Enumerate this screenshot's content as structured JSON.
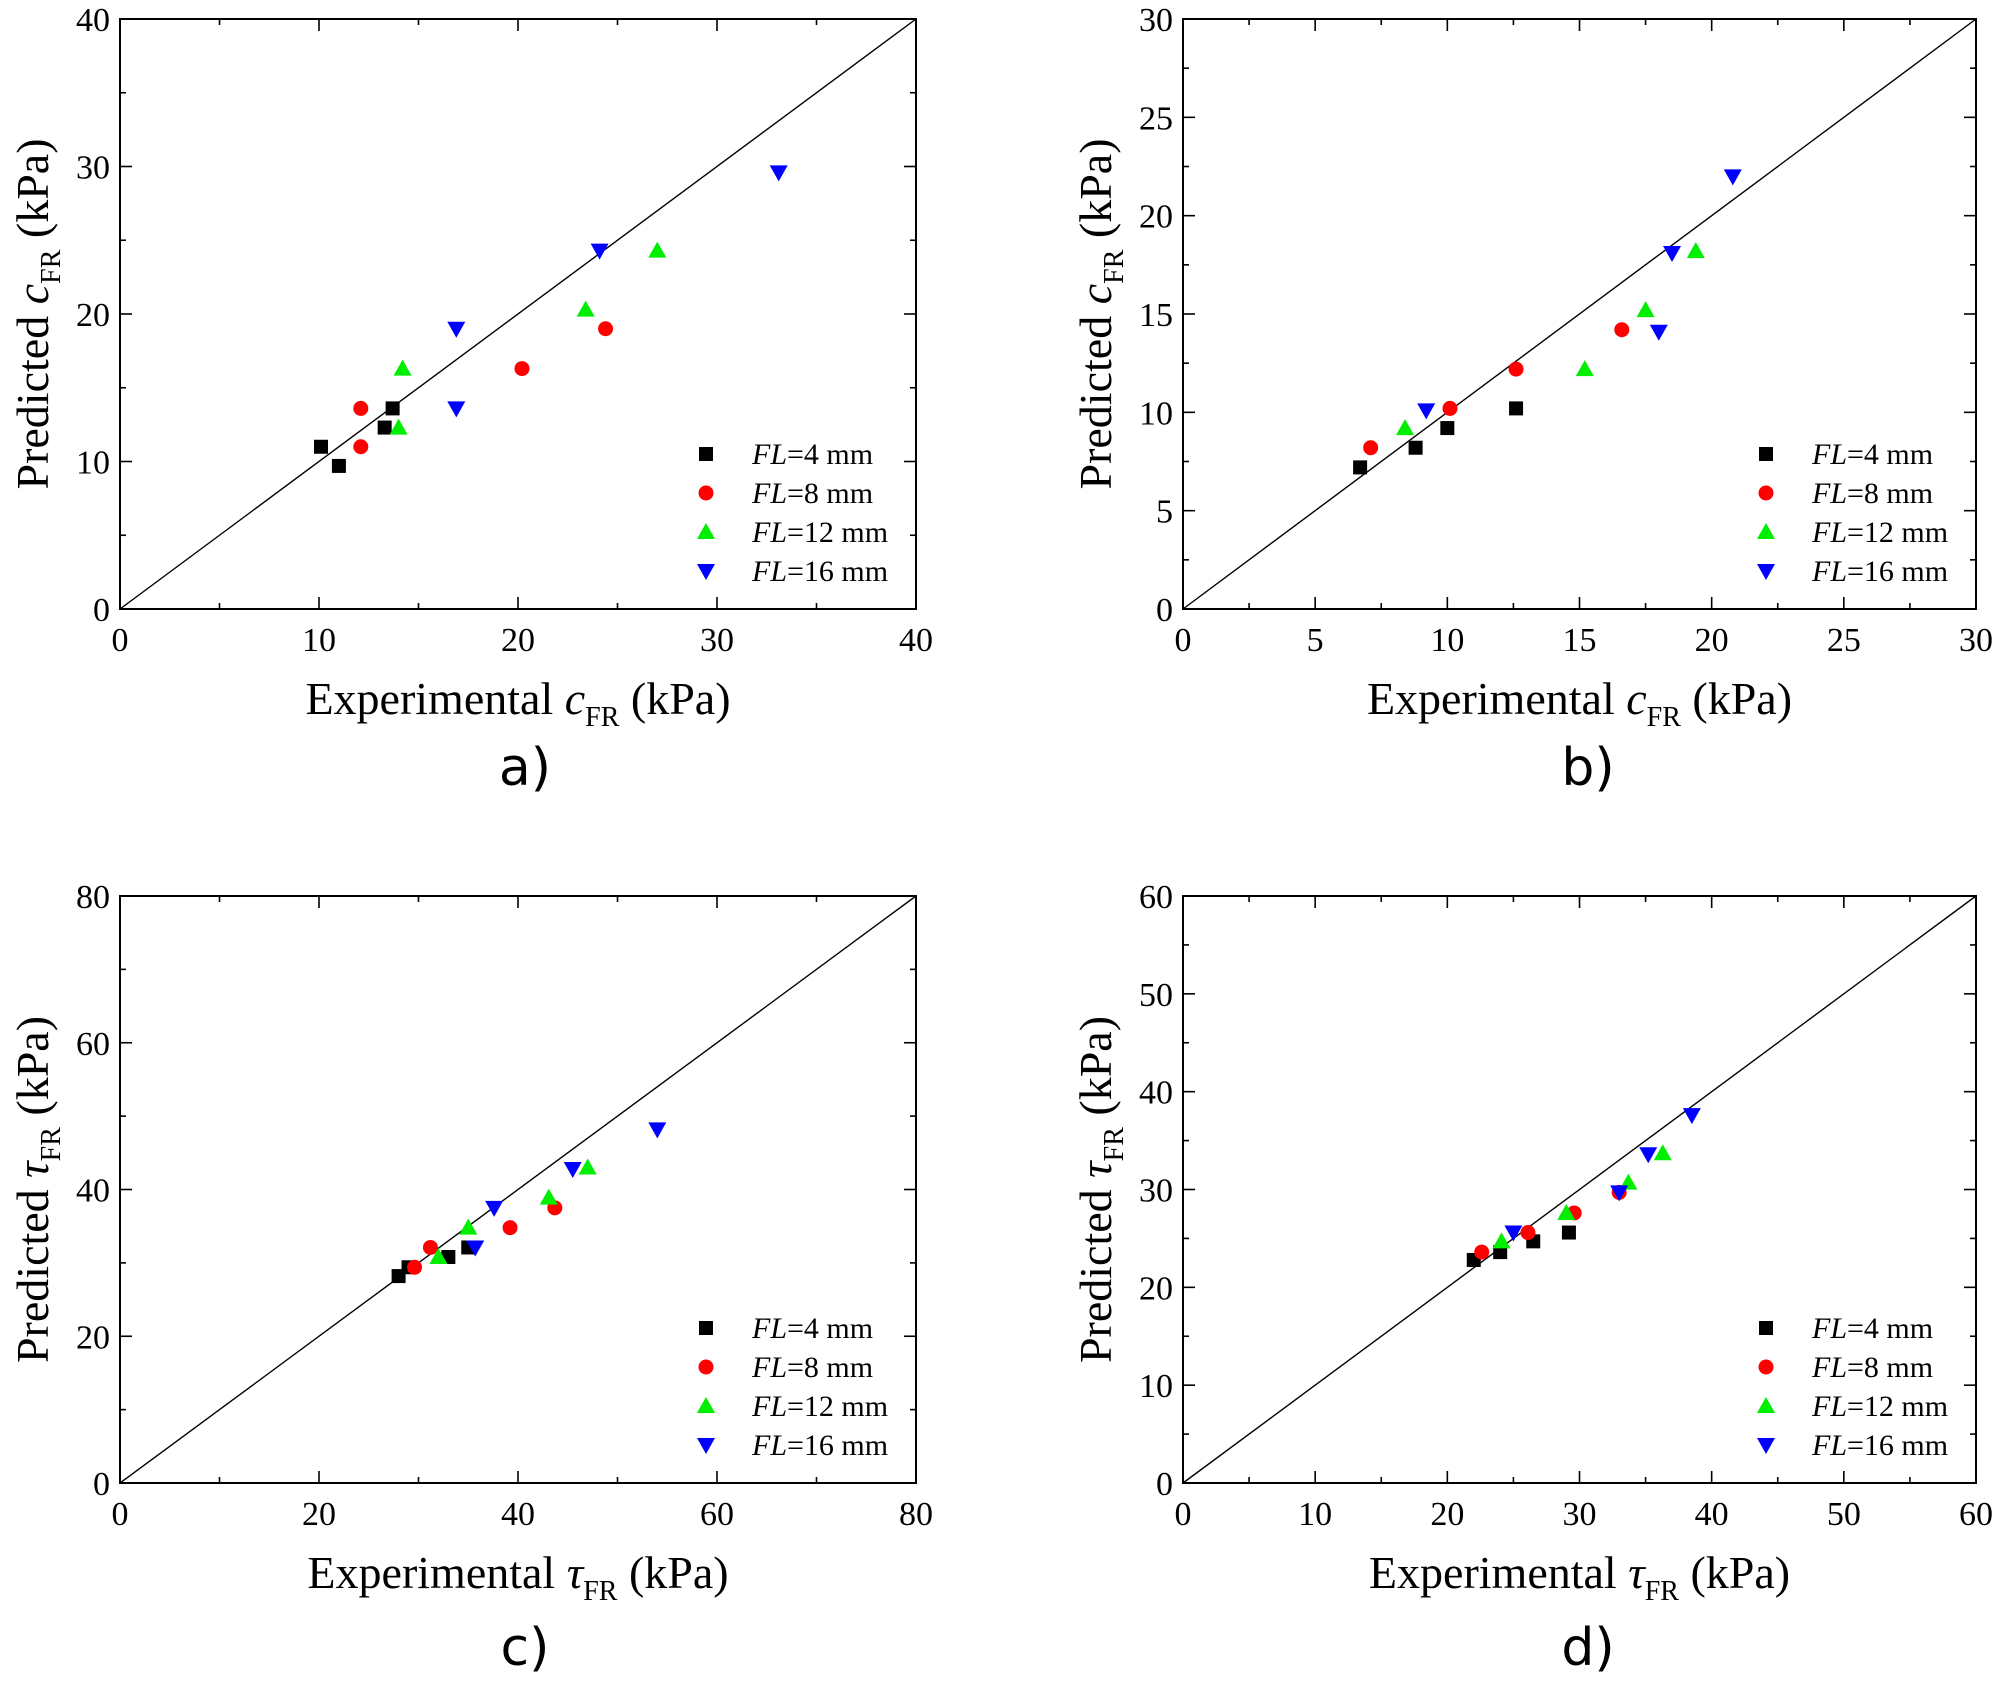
{
  "colors": {
    "FL=4 mm": "#000000",
    "FL=8 mm": "#ff0000",
    "FL=12 mm": "#00ee00",
    "FL=16 mm": "#0000ff"
  },
  "chart_data": [
    {
      "panel_label": "a)",
      "type": "scatter",
      "xlabel": {
        "prefix": "Experimental ",
        "symbol": "c",
        "sub": "FR",
        "suffix": " (kPa)"
      },
      "ylabel": {
        "prefix": "Predicted ",
        "symbol": "c",
        "sub": "FR",
        "suffix": " (kPa)"
      },
      "xlim": [
        0,
        40
      ],
      "ylim": [
        0,
        40
      ],
      "xticks": [
        0,
        10,
        20,
        30,
        40
      ],
      "yticks": [
        0,
        10,
        20,
        30,
        40
      ],
      "legend_position": "bottom-right",
      "reference_line": "y=x",
      "series": [
        {
          "name_italic": "FL",
          "name_rest": "=4 mm",
          "marker": "square",
          "points": [
            [
              10.1,
              11.0
            ],
            [
              11.0,
              9.7
            ],
            [
              13.3,
              12.3
            ],
            [
              13.7,
              13.6
            ]
          ]
        },
        {
          "name_italic": "FL",
          "name_rest": "=8 mm",
          "marker": "circle",
          "points": [
            [
              12.1,
              13.6
            ],
            [
              12.1,
              11.0
            ],
            [
              20.2,
              16.3
            ],
            [
              24.4,
              19.0
            ]
          ]
        },
        {
          "name_italic": "FL",
          "name_rest": "=12 mm",
          "marker": "triangle-up",
          "points": [
            [
              14.0,
              12.3
            ],
            [
              14.2,
              16.3
            ],
            [
              23.4,
              20.3
            ],
            [
              27.0,
              24.3
            ]
          ]
        },
        {
          "name_italic": "FL",
          "name_rest": "=16 mm",
          "marker": "triangle-down",
          "points": [
            [
              16.9,
              13.6
            ],
            [
              16.9,
              19.0
            ],
            [
              24.1,
              24.3
            ],
            [
              33.1,
              29.6
            ]
          ]
        }
      ]
    },
    {
      "panel_label": "b)",
      "type": "scatter",
      "xlabel": {
        "prefix": "Experimental ",
        "symbol": "c",
        "sub": "FR",
        "suffix": " (kPa)"
      },
      "ylabel": {
        "prefix": "Predicted ",
        "symbol": "c",
        "sub": "FR",
        "suffix": " (kPa)"
      },
      "xlim": [
        0,
        30
      ],
      "ylim": [
        0,
        30
      ],
      "xticks": [
        0,
        5,
        10,
        15,
        20,
        25,
        30
      ],
      "yticks": [
        0,
        5,
        10,
        15,
        20,
        25,
        30
      ],
      "legend_position": "bottom-right",
      "reference_line": "y=x",
      "series": [
        {
          "name_italic": "FL",
          "name_rest": "=4 mm",
          "marker": "square",
          "points": [
            [
              6.7,
              7.2
            ],
            [
              8.8,
              8.2
            ],
            [
              10.0,
              9.2
            ],
            [
              12.6,
              10.2
            ]
          ]
        },
        {
          "name_italic": "FL",
          "name_rest": "=8 mm",
          "marker": "circle",
          "points": [
            [
              7.1,
              8.2
            ],
            [
              10.1,
              10.2
            ],
            [
              12.6,
              12.2
            ],
            [
              16.6,
              14.2
            ]
          ]
        },
        {
          "name_italic": "FL",
          "name_rest": "=12 mm",
          "marker": "triangle-up",
          "points": [
            [
              8.4,
              9.2
            ],
            [
              15.2,
              12.2
            ],
            [
              17.5,
              15.2
            ],
            [
              19.4,
              18.2
            ]
          ]
        },
        {
          "name_italic": "FL",
          "name_rest": "=16 mm",
          "marker": "triangle-down",
          "points": [
            [
              9.2,
              10.1
            ],
            [
              18.0,
              14.1
            ],
            [
              18.5,
              18.1
            ],
            [
              20.8,
              22.0
            ]
          ]
        }
      ]
    },
    {
      "panel_label": "c)",
      "type": "scatter",
      "xlabel": {
        "prefix": "Experimental ",
        "symbol": "τ",
        "sub": "FR",
        "suffix": " (kPa)"
      },
      "ylabel": {
        "prefix": "Predicted ",
        "symbol": "τ",
        "sub": "FR",
        "suffix": " (kPa)"
      },
      "xlim": [
        0,
        80
      ],
      "ylim": [
        0,
        80
      ],
      "xticks": [
        0,
        20,
        40,
        60,
        80
      ],
      "yticks": [
        0,
        20,
        40,
        60,
        80
      ],
      "legend_position": "bottom-right",
      "reference_line": "y=x",
      "series": [
        {
          "name_italic": "FL",
          "name_rest": "=4 mm",
          "marker": "square",
          "points": [
            [
              28.0,
              28.2
            ],
            [
              29.0,
              29.4
            ],
            [
              33.0,
              30.8
            ],
            [
              35.0,
              32.1
            ]
          ]
        },
        {
          "name_italic": "FL",
          "name_rest": "=8 mm",
          "marker": "circle",
          "points": [
            [
              29.6,
              29.4
            ],
            [
              31.2,
              32.1
            ],
            [
              39.2,
              34.8
            ],
            [
              43.7,
              37.5
            ]
          ]
        },
        {
          "name_italic": "FL",
          "name_rest": "=12 mm",
          "marker": "triangle-up",
          "points": [
            [
              32.0,
              30.8
            ],
            [
              35.0,
              34.8
            ],
            [
              43.1,
              38.9
            ],
            [
              47.0,
              43.0
            ]
          ]
        },
        {
          "name_italic": "FL",
          "name_rest": "=16 mm",
          "marker": "triangle-down",
          "points": [
            [
              35.7,
              32.1
            ],
            [
              37.6,
              37.5
            ],
            [
              45.5,
              42.8
            ],
            [
              54.0,
              48.2
            ]
          ]
        }
      ]
    },
    {
      "panel_label": "d)",
      "type": "scatter",
      "xlabel": {
        "prefix": "Experimental ",
        "symbol": "τ",
        "sub": "FR",
        "suffix": " (kPa)"
      },
      "ylabel": {
        "prefix": "Predicted ",
        "symbol": "τ",
        "sub": "FR",
        "suffix": " (kPa)"
      },
      "xlim": [
        0,
        60
      ],
      "ylim": [
        0,
        60
      ],
      "xticks": [
        0,
        10,
        20,
        30,
        40,
        50,
        60
      ],
      "yticks": [
        0,
        10,
        20,
        30,
        40,
        50,
        60
      ],
      "legend_position": "bottom-right",
      "reference_line": "y=x",
      "series": [
        {
          "name_italic": "FL",
          "name_rest": "=4 mm",
          "marker": "square",
          "points": [
            [
              22.0,
              22.8
            ],
            [
              24.0,
              23.6
            ],
            [
              26.5,
              24.7
            ],
            [
              29.2,
              25.6
            ]
          ]
        },
        {
          "name_italic": "FL",
          "name_rest": "=8 mm",
          "marker": "circle",
          "points": [
            [
              22.6,
              23.6
            ],
            [
              26.1,
              25.6
            ],
            [
              29.6,
              27.6
            ],
            [
              33.0,
              29.7
            ]
          ]
        },
        {
          "name_italic": "FL",
          "name_rest": "=12 mm",
          "marker": "triangle-up",
          "points": [
            [
              24.1,
              24.7
            ],
            [
              29.0,
              27.6
            ],
            [
              33.7,
              30.7
            ],
            [
              36.3,
              33.7
            ]
          ]
        },
        {
          "name_italic": "FL",
          "name_rest": "=16 mm",
          "marker": "triangle-down",
          "points": [
            [
              25.0,
              25.6
            ],
            [
              33.0,
              29.7
            ],
            [
              35.2,
              33.6
            ],
            [
              38.5,
              37.6
            ]
          ]
        }
      ]
    }
  ]
}
